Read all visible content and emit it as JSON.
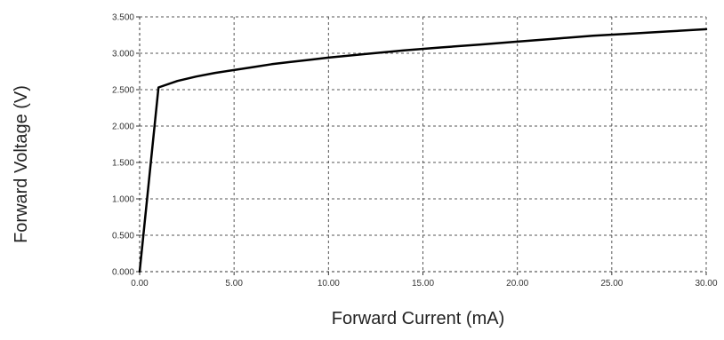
{
  "chart_data": {
    "type": "line",
    "title": "",
    "xlabel": "Forward Current (mA)",
    "ylabel": "Forward Voltage (V)",
    "xlim": [
      0,
      30
    ],
    "ylim": [
      0,
      3.5
    ],
    "x_ticks": [
      "0.00",
      "5.00",
      "10.00",
      "15.00",
      "20.00",
      "25.00",
      "30.00"
    ],
    "y_ticks": [
      "0.000",
      "0.500",
      "1.000",
      "1.500",
      "2.000",
      "2.500",
      "3.000",
      "3.500"
    ],
    "grid": true,
    "legend": "none",
    "series": [
      {
        "color": "#000000",
        "x": [
          0,
          1,
          2,
          3,
          4,
          5,
          6,
          7,
          8,
          9,
          10,
          12,
          14,
          16,
          18,
          20,
          22,
          24,
          26,
          28,
          30
        ],
        "y": [
          0.0,
          2.53,
          2.62,
          2.68,
          2.73,
          2.77,
          2.81,
          2.85,
          2.88,
          2.91,
          2.94,
          2.99,
          3.04,
          3.08,
          3.12,
          3.16,
          3.2,
          3.24,
          3.27,
          3.3,
          3.33
        ]
      }
    ]
  }
}
